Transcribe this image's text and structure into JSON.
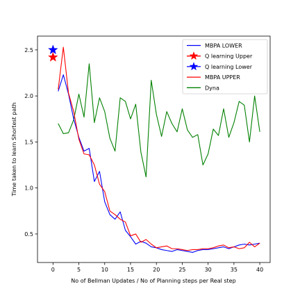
{
  "chart_data": {
    "type": "line",
    "title": "",
    "xlabel": "No of Bellman Updates / No of Planning steps per Real step",
    "ylabel": "Time taken to learn Shortest path",
    "xlim": [
      -3,
      42
    ],
    "ylim": [
      0.19,
      2.65
    ],
    "xticks": [
      0,
      5,
      10,
      15,
      20,
      25,
      30,
      35,
      40
    ],
    "yticks": [
      0.5,
      1.0,
      1.5,
      2.0,
      2.5
    ],
    "xtick_labels": [
      "0",
      "5",
      "10",
      "15",
      "20",
      "25",
      "30",
      "35",
      "40"
    ],
    "ytick_labels": [
      "0.5",
      "1.0",
      "1.5",
      "2.0",
      "2.5"
    ],
    "grid": false,
    "legend_position": "top-right",
    "series": [
      {
        "name": "MBPA LOWER",
        "color": "#0000ff",
        "marker": "none",
        "x": [
          1,
          2,
          3,
          4,
          5,
          6,
          7,
          8,
          9,
          10,
          11,
          12,
          13,
          14,
          15,
          16,
          17,
          18,
          19,
          20,
          21,
          22,
          23,
          24,
          25,
          26,
          27,
          28,
          29,
          30,
          31,
          32,
          33,
          34,
          35,
          36,
          37,
          38,
          39,
          40
        ],
        "y": [
          2.05,
          2.23,
          2.02,
          1.75,
          1.55,
          1.4,
          1.43,
          1.07,
          1.18,
          0.85,
          0.71,
          0.66,
          0.74,
          0.54,
          0.47,
          0.39,
          0.42,
          0.4,
          0.36,
          0.35,
          0.33,
          0.32,
          0.31,
          0.33,
          0.32,
          0.31,
          0.3,
          0.32,
          0.33,
          0.33,
          0.34,
          0.35,
          0.36,
          0.34,
          0.36,
          0.38,
          0.39,
          0.38,
          0.39,
          0.4
        ]
      },
      {
        "name": "Q learning Upper",
        "color": "#ff0000",
        "marker": "star",
        "x": [
          0
        ],
        "y": [
          2.42
        ]
      },
      {
        "name": "Q learning Lower",
        "color": "#0000ff",
        "marker": "star",
        "x": [
          0
        ],
        "y": [
          2.5
        ]
      },
      {
        "name": "MBPA UPPER",
        "color": "#ff0000",
        "marker": "none",
        "x": [
          1,
          2,
          3,
          4,
          5,
          6,
          7,
          8,
          9,
          10,
          11,
          12,
          13,
          14,
          15,
          16,
          17,
          18,
          19,
          20,
          21,
          22,
          23,
          24,
          25,
          26,
          27,
          28,
          29,
          30,
          31,
          32,
          33,
          34,
          35,
          36,
          37,
          38,
          39,
          40
        ],
        "y": [
          2.07,
          2.53,
          2.03,
          1.83,
          1.53,
          1.37,
          1.36,
          1.25,
          1.04,
          0.96,
          0.75,
          0.71,
          0.66,
          0.63,
          0.48,
          0.5,
          0.41,
          0.44,
          0.39,
          0.35,
          0.36,
          0.37,
          0.34,
          0.34,
          0.33,
          0.32,
          0.33,
          0.33,
          0.34,
          0.34,
          0.35,
          0.37,
          0.38,
          0.35,
          0.36,
          0.34,
          0.35,
          0.41,
          0.36,
          0.4
        ]
      },
      {
        "name": "Dyna",
        "color": "#008000",
        "marker": "none",
        "x": [
          1,
          2,
          3,
          4,
          5,
          6,
          7,
          8,
          9,
          10,
          11,
          12,
          13,
          14,
          15,
          16,
          17,
          18,
          19,
          20,
          21,
          22,
          23,
          24,
          25,
          26,
          27,
          28,
          29,
          30,
          31,
          32,
          33,
          34,
          35,
          36,
          37,
          38,
          39,
          40
        ],
        "y": [
          1.7,
          1.59,
          1.6,
          1.74,
          2.02,
          1.77,
          2.35,
          1.71,
          1.98,
          1.83,
          1.54,
          1.4,
          1.98,
          1.94,
          1.75,
          1.91,
          1.39,
          1.12,
          2.17,
          1.8,
          1.56,
          1.83,
          1.7,
          1.61,
          1.86,
          1.63,
          1.55,
          1.58,
          1.25,
          1.37,
          1.64,
          1.57,
          1.86,
          1.55,
          1.71,
          1.94,
          1.9,
          1.5,
          2.0,
          1.61
        ]
      }
    ]
  }
}
